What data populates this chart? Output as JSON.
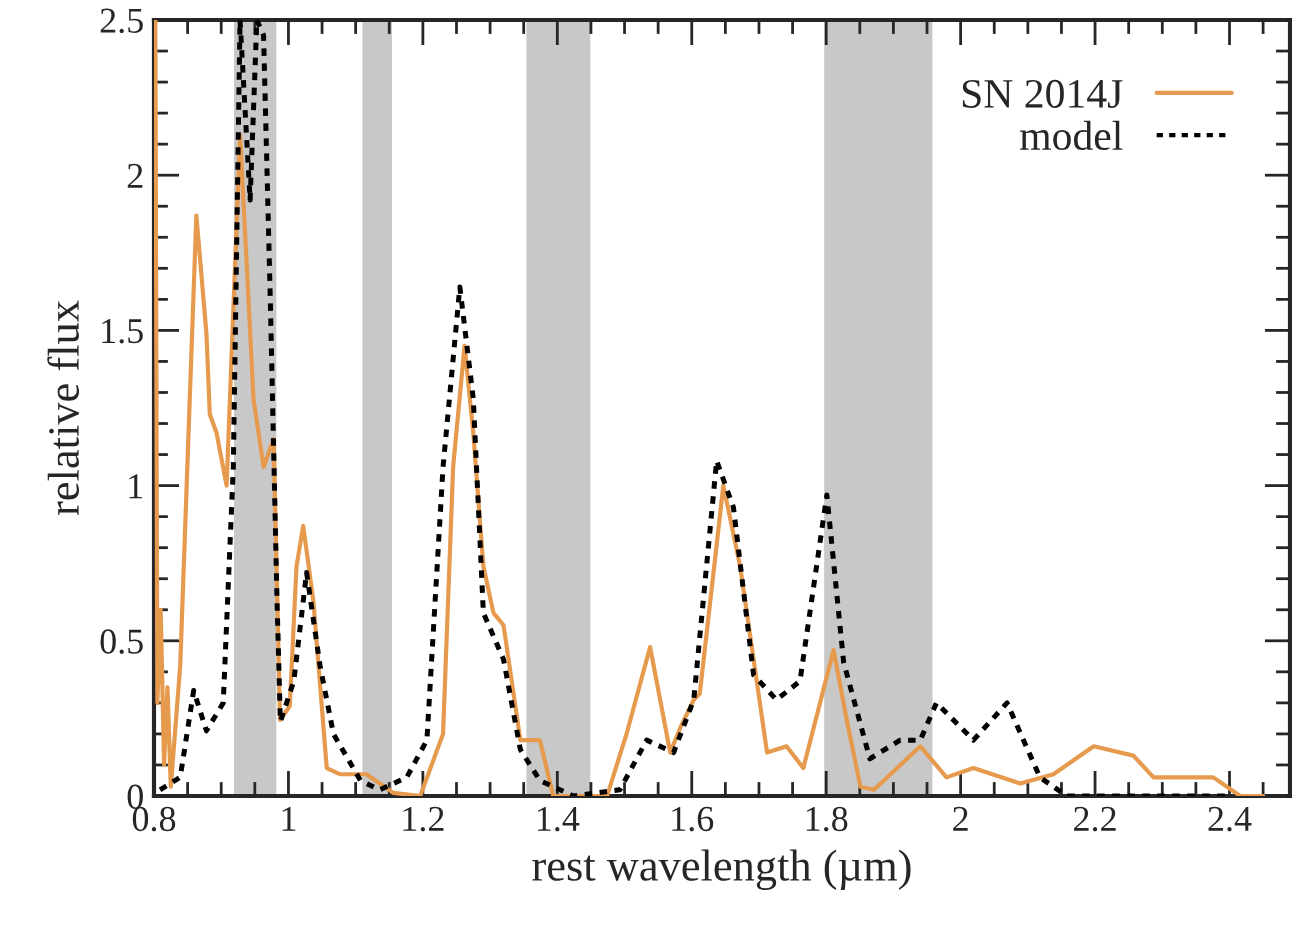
{
  "chart_data": {
    "type": "line",
    "xlabel": "rest wavelength (µm)",
    "ylabel": "relative flux",
    "xlim": [
      0.8,
      2.49
    ],
    "ylim": [
      0,
      2.5
    ],
    "xticks": [
      0.8,
      {
        "value": 0.85,
        "label": null
      },
      {
        "value": 0.9,
        "label": null
      },
      {
        "value": 0.95,
        "label": null
      },
      1,
      {
        "value": 1.05,
        "label": null
      },
      {
        "value": 1.1,
        "label": null
      },
      {
        "value": 1.15,
        "label": null
      },
      1.2,
      {
        "value": 1.25,
        "label": null
      },
      {
        "value": 1.3,
        "label": null
      },
      {
        "value": 1.35,
        "label": null
      },
      1.4,
      {
        "value": 1.45,
        "label": null
      },
      {
        "value": 1.5,
        "label": null
      },
      {
        "value": 1.55,
        "label": null
      },
      1.6,
      {
        "value": 1.65,
        "label": null
      },
      {
        "value": 1.7,
        "label": null
      },
      {
        "value": 1.75,
        "label": null
      },
      1.8,
      {
        "value": 1.85,
        "label": null
      },
      {
        "value": 1.9,
        "label": null
      },
      {
        "value": 1.95,
        "label": null
      },
      2,
      {
        "value": 2.05,
        "label": null
      },
      {
        "value": 2.1,
        "label": null
      },
      {
        "value": 2.15,
        "label": null
      },
      2.2,
      {
        "value": 2.25,
        "label": null
      },
      {
        "value": 2.3,
        "label": null
      },
      {
        "value": 2.35,
        "label": null
      },
      2.4,
      {
        "value": 2.45,
        "label": null
      }
    ],
    "yticks": [
      0,
      {
        "value": 0.1,
        "label": null
      },
      {
        "value": 0.2,
        "label": null
      },
      {
        "value": 0.3,
        "label": null
      },
      {
        "value": 0.4,
        "label": null
      },
      0.5,
      {
        "value": 0.6,
        "label": null
      },
      {
        "value": 0.7,
        "label": null
      },
      {
        "value": 0.8,
        "label": null
      },
      {
        "value": 0.9,
        "label": null
      },
      1,
      {
        "value": 1.1,
        "label": null
      },
      {
        "value": 1.2,
        "label": null
      },
      {
        "value": 1.3,
        "label": null
      },
      {
        "value": 1.4,
        "label": null
      },
      1.5,
      {
        "value": 1.6,
        "label": null
      },
      {
        "value": 1.7,
        "label": null
      },
      {
        "value": 1.8,
        "label": null
      },
      {
        "value": 1.9,
        "label": null
      },
      2,
      {
        "value": 2.1,
        "label": null
      },
      {
        "value": 2.2,
        "label": null
      },
      {
        "value": 2.3,
        "label": null
      },
      {
        "value": 2.4,
        "label": null
      },
      2.5
    ],
    "grid": false,
    "legend": "top right",
    "bands": [
      {
        "axis": "x",
        "from": 0.919,
        "to": 0.982,
        "color": "#c8c8c8"
      },
      {
        "axis": "x",
        "from": 1.11,
        "to": 1.154,
        "color": "#c8c8c8"
      },
      {
        "axis": "x",
        "from": 1.354,
        "to": 1.449,
        "color": "#c8c8c8"
      },
      {
        "axis": "x",
        "from": 1.797,
        "to": 1.958,
        "color": "#c8c8c8"
      }
    ],
    "series": [
      {
        "name": "SN 2014J",
        "color": "#e69a4e",
        "line_style": "solid",
        "x": [
          0.802,
          0.805,
          0.81,
          0.815,
          0.82,
          0.825,
          0.839,
          0.863,
          0.878,
          0.883,
          0.893,
          0.908,
          0.928,
          0.938,
          0.948,
          0.963,
          0.978,
          0.9875,
          1.002,
          1.012,
          1.022,
          1.037,
          1.057,
          1.077,
          1.116,
          1.156,
          1.196,
          1.23,
          1.245,
          1.262,
          1.275,
          1.29,
          1.305,
          1.32,
          1.345,
          1.374,
          1.394,
          1.474,
          1.503,
          1.538,
          1.568,
          1.583,
          1.603,
          1.612,
          1.647,
          1.672,
          1.712,
          1.741,
          1.766,
          1.811,
          1.831,
          1.851,
          1.871,
          1.94,
          1.979,
          2.019,
          2.089,
          2.138,
          2.198,
          2.257,
          2.287,
          2.376,
          2.416,
          2.45
        ],
        "values": [
          2.5,
          0.3,
          0.6,
          0.1,
          0.35,
          0.03,
          0.42,
          1.87,
          1.49,
          1.23,
          1.17,
          1.0,
          2.13,
          1.71,
          1.28,
          1.06,
          1.15,
          0.245,
          0.29,
          0.74,
          0.87,
          0.63,
          0.09,
          0.07,
          0.07,
          0.01,
          0.0,
          0.2,
          1.06,
          1.45,
          1.17,
          0.74,
          0.59,
          0.55,
          0.18,
          0.18,
          0.0,
          0.0,
          0.2,
          0.48,
          0.14,
          0.22,
          0.31,
          0.33,
          1.0,
          0.74,
          0.14,
          0.16,
          0.09,
          0.47,
          0.24,
          0.03,
          0.02,
          0.16,
          0.06,
          0.09,
          0.04,
          0.07,
          0.16,
          0.13,
          0.06,
          0.06,
          0.0,
          0.0
        ]
      },
      {
        "name": "model",
        "color": "#000000",
        "line_style": "dotted",
        "x": [
          0.809,
          0.839,
          0.859,
          0.878,
          0.903,
          0.918,
          0.928,
          0.943,
          0.953,
          0.963,
          0.973,
          0.983,
          0.988,
          1.008,
          1.027,
          1.047,
          1.067,
          1.107,
          1.136,
          1.176,
          1.206,
          1.23,
          1.255,
          1.275,
          1.29,
          1.32,
          1.345,
          1.374,
          1.424,
          1.493,
          1.533,
          1.573,
          1.603,
          1.637,
          1.662,
          1.692,
          1.726,
          1.761,
          1.801,
          1.826,
          1.865,
          1.91,
          1.94,
          1.964,
          2.019,
          2.069,
          2.118,
          2.158,
          2.396
        ],
        "values": [
          0.02,
          0.06,
          0.34,
          0.21,
          0.3,
          1.06,
          2.5,
          1.92,
          2.5,
          2.45,
          1.6,
          0.63,
          0.24,
          0.37,
          0.72,
          0.42,
          0.2,
          0.05,
          0.02,
          0.06,
          0.18,
          1.06,
          1.64,
          1.28,
          0.59,
          0.44,
          0.15,
          0.05,
          0.0,
          0.02,
          0.18,
          0.14,
          0.31,
          1.08,
          0.93,
          0.39,
          0.31,
          0.37,
          0.97,
          0.43,
          0.12,
          0.18,
          0.18,
          0.3,
          0.18,
          0.3,
          0.06,
          0.0,
          0.0
        ]
      }
    ]
  }
}
